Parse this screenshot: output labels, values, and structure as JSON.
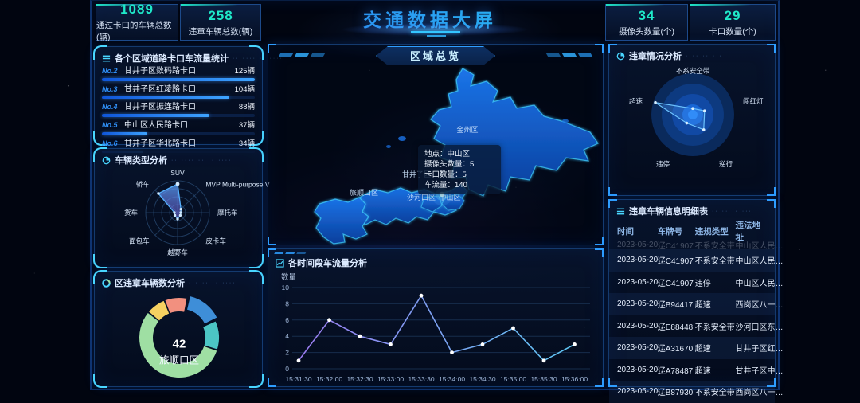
{
  "header": {
    "title": "交通数据大屏",
    "stats_left": [
      {
        "value": "1089",
        "label": "通过卡口的车辆总数(辆)"
      },
      {
        "value": "258",
        "label": "违章车辆总数(辆)"
      }
    ],
    "stats_right": [
      {
        "value": "34",
        "label": "摄像头数量(个)"
      },
      {
        "value": "29",
        "label": "卡口数量(个)"
      }
    ]
  },
  "map": {
    "badge": "区域总览",
    "regions": [
      {
        "name": "金州区"
      },
      {
        "name": "甘井子区"
      },
      {
        "name": "旅顺口区"
      },
      {
        "name": "沙河口区"
      },
      {
        "name": "中山区"
      }
    ],
    "tooltip_lines": [
      "地点：中山区",
      "摄像头数量：5",
      "卡口数量：5",
      "车流量：140"
    ]
  },
  "chart_data": [
    {
      "id": "checkpoint_flow_rank",
      "type": "bar",
      "title": "各个区域道路卡口车流量统计",
      "deco": "·· ···· ·· ····",
      "unit": "辆",
      "max": 125,
      "items": [
        {
          "rank": "No.2",
          "name": "甘井子区数码路卡口",
          "value": 125
        },
        {
          "rank": "No.3",
          "name": "甘井子区红凌路卡口",
          "value": 104
        },
        {
          "rank": "No.4",
          "name": "甘井子区振连路卡口",
          "value": 88
        },
        {
          "rank": "No.5",
          "name": "中山区人民路卡口",
          "value": 37
        },
        {
          "rank": "No.6",
          "name": "甘井子区华北路卡口",
          "value": 34
        }
      ]
    },
    {
      "id": "vehicle_type",
      "type": "radar",
      "title": "车辆类型分析",
      "deco": "·· ···· ·· ·· ····",
      "max": 10,
      "axes": [
        "SUV",
        "MVP Multi-purpose V",
        "摩托车",
        "皮卡车",
        "越野车",
        "面包车",
        "货车",
        "轿车"
      ],
      "values": [
        9,
        1.5,
        1,
        1.2,
        2,
        1.2,
        1,
        8.5
      ]
    },
    {
      "id": "district_violation",
      "type": "pie",
      "title": "区违章车辆数分析",
      "deco": "··· ·· ·· ····",
      "center_value": "42",
      "center_label": "旅顺口区",
      "segments": [
        {
          "label": "",
          "value": 11,
          "color": "#3e8ed8",
          "offset": true
        },
        {
          "label": "",
          "value": 9,
          "color": "#4cc5c4"
        },
        {
          "label": "旅顺口区",
          "value": 42,
          "color": "#9fdfa3"
        },
        {
          "label": "",
          "value": 6,
          "color": "#f6d161"
        },
        {
          "label": "",
          "value": 7,
          "color": "#f2907f"
        }
      ]
    },
    {
      "id": "time_flow",
      "type": "line",
      "title": "各时间段车流量分析",
      "ylabel": "数量",
      "ylim": [
        0,
        10
      ],
      "yticks": [
        0,
        2,
        4,
        6,
        8,
        10
      ],
      "x": [
        "15:31:30",
        "15:32:00",
        "15:32:30",
        "15:33:00",
        "15:33:30",
        "15:34:00",
        "15:34:30",
        "15:35:00",
        "15:35:30",
        "15:36:00"
      ],
      "values": [
        1,
        6,
        4,
        3,
        9,
        2,
        3,
        5,
        1,
        3
      ]
    },
    {
      "id": "violation_radar",
      "type": "radar-polar",
      "title": "违章情况分析",
      "deco": "···· ·· ···",
      "max": 10,
      "axes": [
        "不系安全带",
        "闯红灯",
        "逆行",
        "违停",
        "超速"
      ],
      "values": [
        1.5,
        3,
        4.5,
        2.5,
        9.5
      ]
    }
  ],
  "table": {
    "title": "违章车辆信息明细表",
    "deco": "·· ·· ·· ···",
    "headers": [
      "时间",
      "车牌号",
      "违规类型",
      "违法地址"
    ],
    "rows": [
      [
        "2023-05-20…",
        "辽C41907",
        "不系安全带",
        "中山区人民…"
      ],
      [
        "2023-05-20…",
        "辽C41907",
        "违停",
        "中山区人民…"
      ],
      [
        "2023-05-20…",
        "辽B94417",
        "超速",
        "西岗区八一…"
      ],
      [
        "2023-05-20…",
        "辽E88448",
        "不系安全带",
        "沙河口区东…"
      ],
      [
        "2023-05-20…",
        "辽A31670",
        "超速",
        "甘井子区红…"
      ],
      [
        "2023-05-20…",
        "辽A78487",
        "超速",
        "甘井子区中…"
      ],
      [
        "2023-05-20…",
        "辽B87930",
        "不系安全带",
        "西岗区八一…"
      ]
    ]
  },
  "colors": {
    "accent": "#35c8ff",
    "stat_value": "#1fe9c9",
    "bar_fill": "#2b8dff",
    "line_start": "#9b7bf0",
    "line_end": "#5ec8f5"
  }
}
